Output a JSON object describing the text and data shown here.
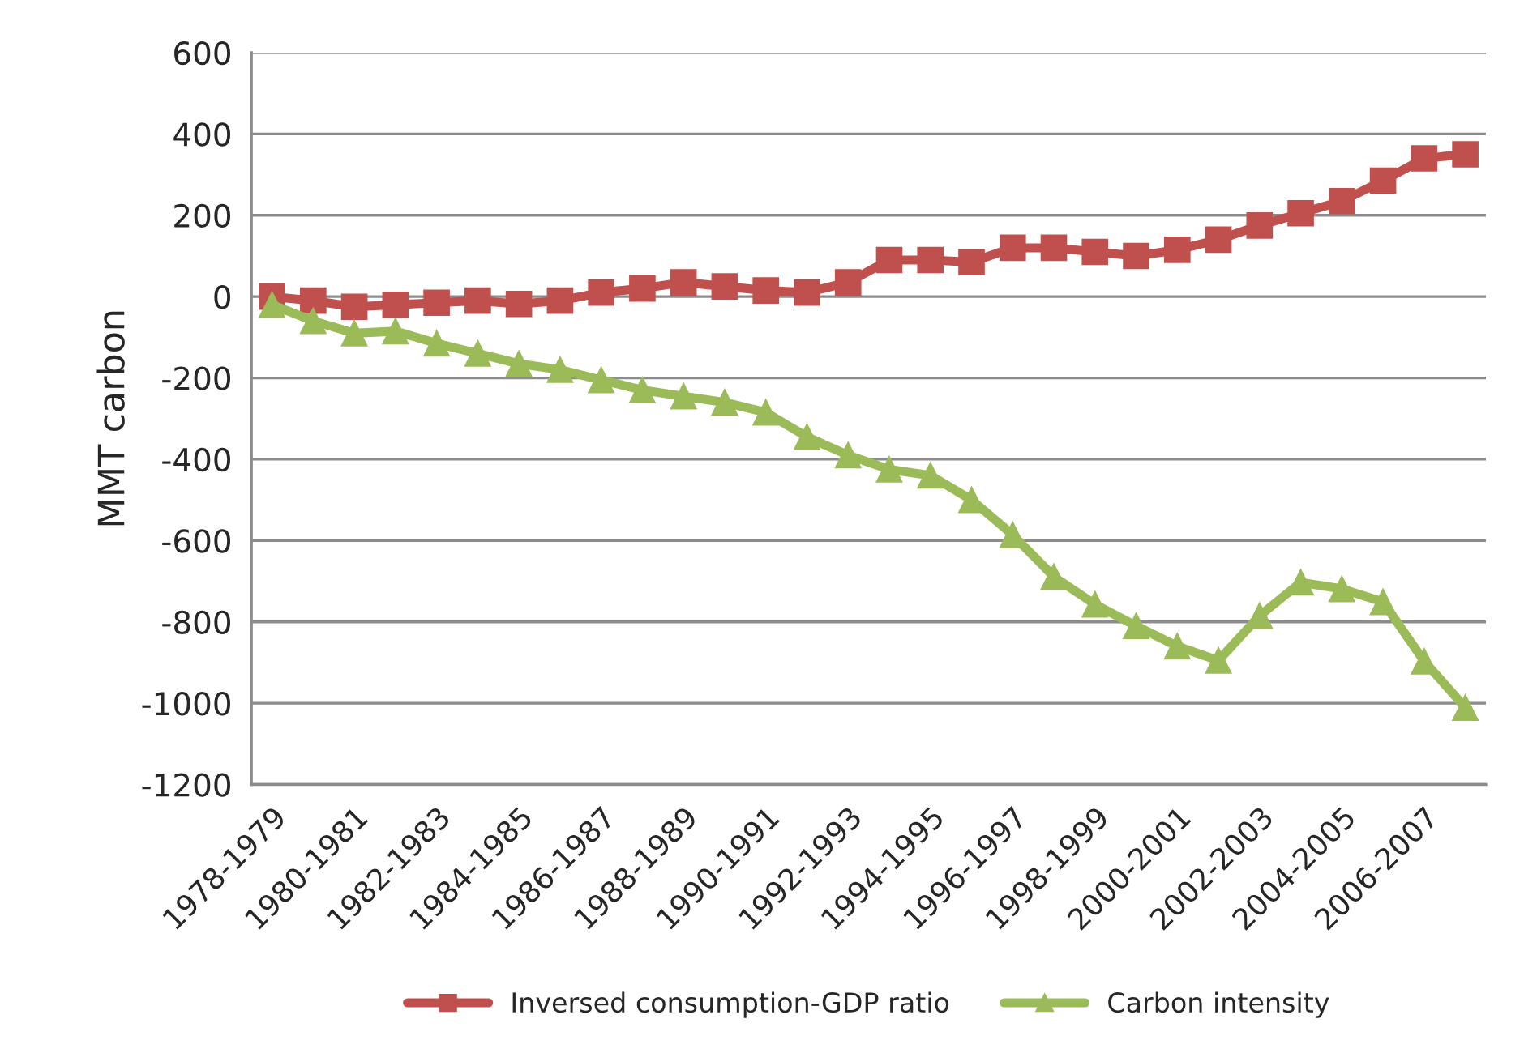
{
  "chart_data": {
    "type": "line",
    "ylabel": "MMT carbon",
    "categories": [
      "1978-1979",
      null,
      "1980-1981",
      null,
      "1982-1983",
      null,
      "1984-1985",
      null,
      "1986-1987",
      null,
      "1988-1989",
      null,
      "1990-1991",
      null,
      "1992-1993",
      null,
      "1994-1995",
      null,
      "1996-1997",
      null,
      "1998-1999",
      null,
      "2000-2001",
      null,
      "2002-2003",
      null,
      "2004-2005",
      null,
      "2006-2007",
      null
    ],
    "series": [
      {
        "name": "Inversed consumption-GDP ratio",
        "color": "#c0504d",
        "marker": "square",
        "values": [
          0,
          -10,
          -25,
          -20,
          -15,
          -10,
          -18,
          -10,
          10,
          20,
          35,
          25,
          15,
          10,
          35,
          90,
          90,
          85,
          120,
          120,
          110,
          100,
          115,
          140,
          175,
          205,
          235,
          285,
          340,
          350
        ]
      },
      {
        "name": "Carbon intensity",
        "color": "#9bbb59",
        "marker": "triangle",
        "values": [
          -20,
          -60,
          -90,
          -85,
          -115,
          -140,
          -165,
          -180,
          -205,
          -230,
          -245,
          -260,
          -285,
          -345,
          -390,
          -425,
          -440,
          -500,
          -586,
          -689,
          -757,
          -810,
          -860,
          -895,
          -785,
          -703,
          -719,
          -751,
          -897,
          -1011
        ]
      }
    ],
    "ylim": [
      -1200,
      600
    ],
    "yticks": [
      -1200,
      -1000,
      -800,
      -600,
      -400,
      -200,
      0,
      200,
      400,
      600
    ],
    "grid": "y",
    "legend": "bottom",
    "line_style": "solid"
  }
}
